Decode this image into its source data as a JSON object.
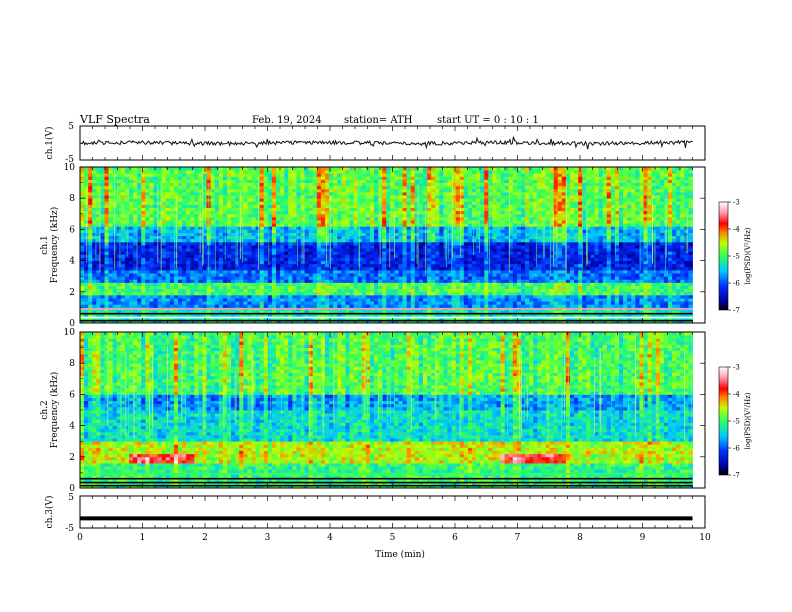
{
  "header": {
    "title": "VLF  Spectra",
    "date": "Feb. 19, 2024",
    "station": "station= ATH",
    "start": "start  UT  =     0  : 10 : 1"
  },
  "colors": {
    "axis": "#000000",
    "trace": "#111111"
  },
  "chart_data": [
    {
      "type": "line",
      "panel": "ch1-waveform",
      "ylabel": "ch.1(V)",
      "ylim": [
        -5,
        5
      ],
      "yticks": [
        "5",
        "-5"
      ],
      "xlim": [
        0,
        10
      ],
      "baseline": 0,
      "series": [
        {
          "values_desc": "noisy waveform near 0 V, amplitude about ±1 V"
        }
      ]
    },
    {
      "type": "heatmap",
      "panel": "ch1-spectrogram",
      "ylabel": "ch.1\nFrequency (kHz)",
      "ylabel_lines": [
        "ch.1",
        "Frequency (kHz)"
      ],
      "ylim": [
        0,
        10
      ],
      "yticks": [
        "0",
        "2",
        "4",
        "6",
        "8",
        "10"
      ],
      "xlim": [
        0,
        10
      ],
      "data_end": 9.8,
      "colorbar": {
        "label": "log(PSD)(V²/Hz)",
        "ticks": [
          "-3",
          "-4",
          "-5",
          "-6",
          "-7"
        ],
        "range": [
          -7,
          -3
        ]
      }
    },
    {
      "type": "heatmap",
      "panel": "ch2-spectrogram",
      "ylabel": "ch.2\nFrequency (kHz)",
      "ylabel_lines": [
        "ch.2",
        "Frequency (kHz)"
      ],
      "ylim": [
        0,
        10
      ],
      "yticks": [
        "0",
        "2",
        "4",
        "6",
        "8",
        "10"
      ],
      "xlim": [
        0,
        10
      ],
      "data_end": 9.8,
      "colorbar": {
        "label": "log(PSD)(V²/Hz)",
        "ticks": [
          "-3",
          "-4",
          "-5",
          "-6",
          "-7"
        ],
        "range": [
          -7,
          -3
        ]
      }
    },
    {
      "type": "line",
      "panel": "ch3-waveform",
      "ylabel": "ch.3(V)",
      "ylim": [
        -5,
        5
      ],
      "yticks": [
        "5",
        "-5"
      ],
      "xlim": [
        0,
        10
      ],
      "series": [
        {
          "values_desc": "flat trace at about -2 V"
        }
      ],
      "level": -2
    }
  ],
  "xaxis": {
    "label": "Time  (min)",
    "ticks": [
      "0",
      "1",
      "2",
      "3",
      "4",
      "5",
      "6",
      "7",
      "8",
      "9",
      "10"
    ]
  }
}
